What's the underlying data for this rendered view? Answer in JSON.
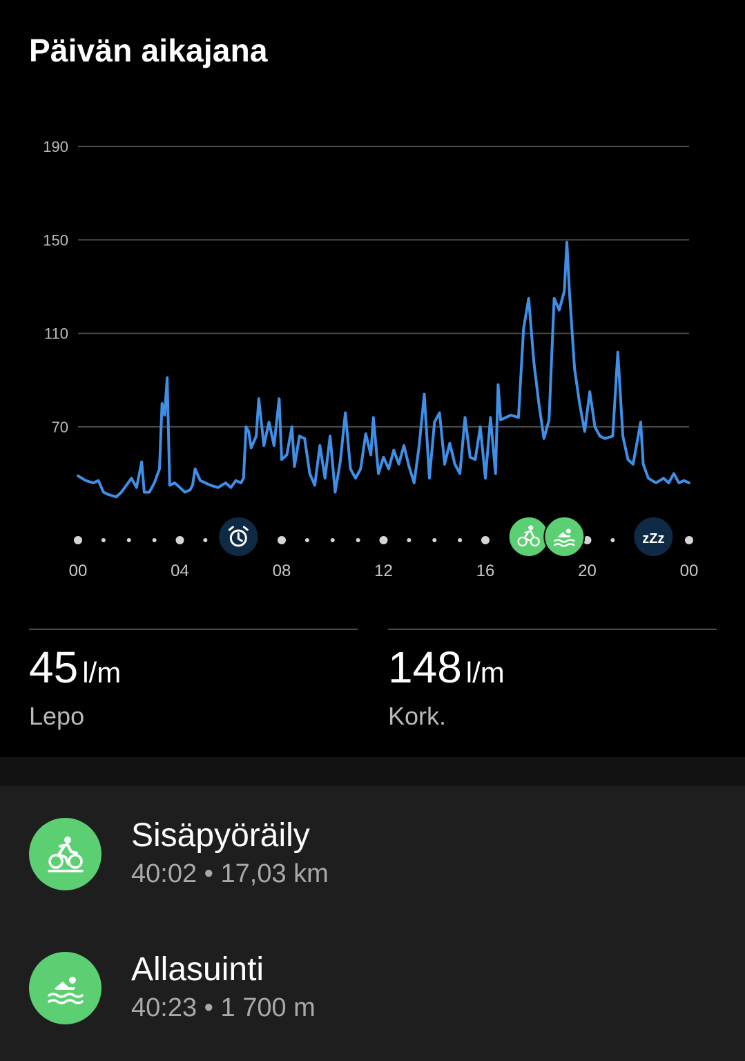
{
  "header": {
    "title": "Päivän aikajana"
  },
  "chart_data": {
    "type": "line",
    "xlabel": "",
    "ylabel": "",
    "ylim": [
      30,
      190
    ],
    "y_gridlines": [
      190,
      150,
      110,
      70
    ],
    "x_tick_labels": [
      "00",
      "04",
      "08",
      "12",
      "16",
      "20",
      "00"
    ],
    "x_range_hours": [
      0,
      24
    ],
    "grid": true,
    "line_color": "#3f8fe6",
    "peak_color": "#a9c96a",
    "series": [
      {
        "points": [
          [
            0.0,
            49
          ],
          [
            0.3,
            47
          ],
          [
            0.6,
            46
          ],
          [
            0.8,
            47
          ],
          [
            1.0,
            42
          ],
          [
            1.2,
            41
          ],
          [
            1.5,
            40
          ],
          [
            1.7,
            42
          ],
          [
            1.9,
            45
          ],
          [
            2.1,
            48
          ],
          [
            2.3,
            44
          ],
          [
            2.5,
            55
          ],
          [
            2.6,
            42
          ],
          [
            2.8,
            42
          ],
          [
            3.0,
            46
          ],
          [
            3.2,
            52
          ],
          [
            3.3,
            80
          ],
          [
            3.4,
            75
          ],
          [
            3.5,
            91
          ],
          [
            3.6,
            45
          ],
          [
            3.8,
            46
          ],
          [
            4.0,
            44
          ],
          [
            4.2,
            42
          ],
          [
            4.4,
            43
          ],
          [
            4.5,
            45
          ],
          [
            4.6,
            52
          ],
          [
            4.8,
            47
          ],
          [
            5.0,
            46
          ],
          [
            5.2,
            45
          ],
          [
            5.5,
            44
          ],
          [
            5.8,
            46
          ],
          [
            6.0,
            44
          ],
          [
            6.2,
            47
          ],
          [
            6.4,
            46
          ],
          [
            6.5,
            48
          ],
          [
            6.6,
            70
          ],
          [
            6.7,
            68
          ],
          [
            6.8,
            61
          ],
          [
            7.0,
            66
          ],
          [
            7.1,
            82
          ],
          [
            7.3,
            62
          ],
          [
            7.5,
            72
          ],
          [
            7.7,
            62
          ],
          [
            7.9,
            82
          ],
          [
            8.0,
            56
          ],
          [
            8.2,
            58
          ],
          [
            8.4,
            70
          ],
          [
            8.5,
            53
          ],
          [
            8.7,
            66
          ],
          [
            8.9,
            65
          ],
          [
            9.1,
            50
          ],
          [
            9.3,
            45
          ],
          [
            9.5,
            62
          ],
          [
            9.7,
            48
          ],
          [
            9.9,
            66
          ],
          [
            10.1,
            42
          ],
          [
            10.3,
            55
          ],
          [
            10.5,
            76
          ],
          [
            10.7,
            52
          ],
          [
            10.9,
            48
          ],
          [
            11.1,
            52
          ],
          [
            11.3,
            67
          ],
          [
            11.5,
            58
          ],
          [
            11.6,
            74
          ],
          [
            11.8,
            50
          ],
          [
            12.0,
            57
          ],
          [
            12.2,
            52
          ],
          [
            12.4,
            60
          ],
          [
            12.6,
            54
          ],
          [
            12.8,
            62
          ],
          [
            13.0,
            53
          ],
          [
            13.2,
            46
          ],
          [
            13.4,
            62
          ],
          [
            13.6,
            84
          ],
          [
            13.8,
            48
          ],
          [
            14.0,
            72
          ],
          [
            14.2,
            76
          ],
          [
            14.4,
            54
          ],
          [
            14.6,
            63
          ],
          [
            14.8,
            54
          ],
          [
            15.0,
            50
          ],
          [
            15.2,
            74
          ],
          [
            15.4,
            57
          ],
          [
            15.6,
            56
          ],
          [
            15.8,
            70
          ],
          [
            16.0,
            48
          ],
          [
            16.2,
            74
          ],
          [
            16.4,
            50
          ],
          [
            16.5,
            88
          ],
          [
            16.6,
            73
          ],
          [
            17.0,
            75
          ],
          [
            17.3,
            74
          ],
          [
            17.5,
            112
          ],
          [
            17.7,
            125
          ],
          [
            17.9,
            98
          ],
          [
            18.1,
            80
          ],
          [
            18.3,
            65
          ],
          [
            18.5,
            73
          ],
          [
            18.7,
            125
          ],
          [
            18.9,
            120
          ],
          [
            19.1,
            128
          ],
          [
            19.2,
            149
          ],
          [
            19.3,
            128
          ],
          [
            19.5,
            95
          ],
          [
            19.7,
            80
          ],
          [
            19.9,
            68
          ],
          [
            20.1,
            85
          ],
          [
            20.3,
            70
          ],
          [
            20.5,
            66
          ],
          [
            20.7,
            65
          ],
          [
            21.0,
            66
          ],
          [
            21.2,
            102
          ],
          [
            21.4,
            66
          ],
          [
            21.6,
            56
          ],
          [
            21.8,
            54
          ],
          [
            22.0,
            66
          ],
          [
            22.1,
            72
          ],
          [
            22.2,
            54
          ],
          [
            22.4,
            48
          ],
          [
            22.7,
            46
          ],
          [
            23.0,
            48
          ],
          [
            23.2,
            46
          ],
          [
            23.4,
            50
          ],
          [
            23.6,
            46
          ],
          [
            23.8,
            47
          ],
          [
            24.0,
            46
          ]
        ]
      }
    ],
    "timeline": {
      "markers": [
        {
          "icon": "alarm-clock-icon",
          "hour": 6.3,
          "bg": "#0f2a45"
        },
        {
          "icon": "indoor-cycling-icon",
          "hour": 17.7,
          "bg": "#5ccf73"
        },
        {
          "icon": "swimming-icon",
          "hour": 19.1,
          "bg": "#5ccf73"
        },
        {
          "icon": "sleep-zzz-icon",
          "hour": 22.6,
          "bg": "#0f2a45",
          "text": "zZz"
        }
      ]
    }
  },
  "stats": {
    "rest": {
      "value": "45",
      "unit": "l/m",
      "label": "Lepo"
    },
    "max": {
      "value": "148",
      "unit": "l/m",
      "label": "Kork."
    }
  },
  "activities": [
    {
      "name": "Sisäpyöräily",
      "meta": "40:02 • 17,03 km",
      "icon": "indoor-cycling-icon"
    },
    {
      "name": "Allasuinti",
      "meta": "40:23 • 1 700 m",
      "icon": "swimming-icon"
    }
  ]
}
